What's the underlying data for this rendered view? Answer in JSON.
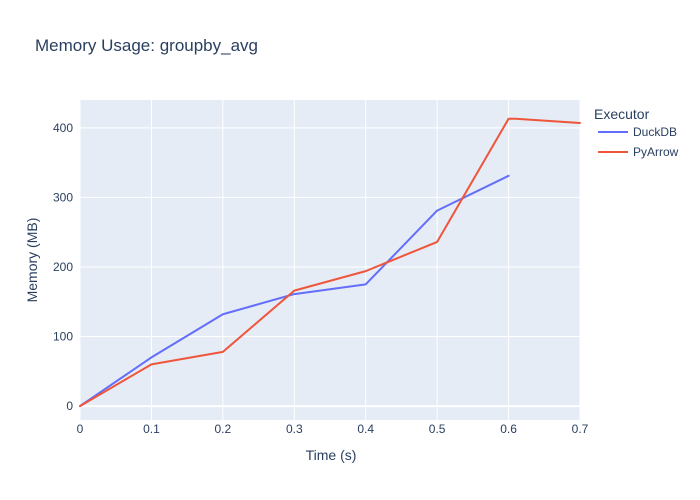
{
  "chart_data": {
    "type": "line",
    "title": "Memory Usage: groupby_avg",
    "xlabel": "Time (s)",
    "ylabel": "Memory (MB)",
    "xlim": [
      0,
      0.7
    ],
    "ylim": [
      -20,
      440
    ],
    "x_ticks": [
      0,
      0.1,
      0.2,
      0.3,
      0.4,
      0.5,
      0.6,
      0.7
    ],
    "x_tick_labels": [
      "0",
      "0.1",
      "0.2",
      "0.3",
      "0.4",
      "0.5",
      "0.6",
      "0.7"
    ],
    "y_ticks": [
      0,
      100,
      200,
      300,
      400
    ],
    "y_tick_labels": [
      "0",
      "100",
      "200",
      "300",
      "400"
    ],
    "grid": true,
    "legend_title": "Executor",
    "legend_position": "top-right outside plot",
    "plot_background": "#e5ecf6",
    "grid_color": "#ffffff",
    "series": [
      {
        "name": "DuckDB",
        "color": "#636efa",
        "x": [
          0,
          0.1,
          0.2,
          0.3,
          0.4,
          0.5,
          0.6
        ],
        "y": [
          0,
          70,
          132,
          161,
          175,
          281,
          331
        ]
      },
      {
        "name": "PyArrow",
        "color": "#ef553b",
        "x": [
          0,
          0.1,
          0.2,
          0.3,
          0.4,
          0.5,
          0.6,
          0.61,
          0.7
        ],
        "y": [
          0,
          60,
          78,
          166,
          194,
          236,
          413,
          413,
          407
        ]
      }
    ]
  }
}
